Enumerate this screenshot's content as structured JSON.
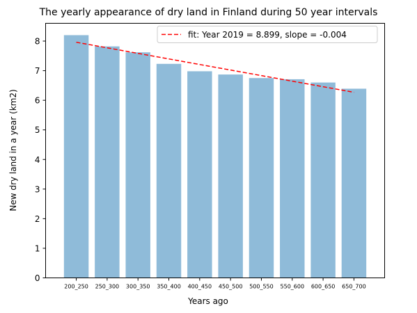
{
  "chart_data": {
    "type": "bar",
    "title": "The yearly appearance of dry land in Finland during 50 year intervals",
    "xlabel": "Years ago",
    "ylabel": "New dry land in a year (km2)",
    "categories": [
      "200_250",
      "250_300",
      "300_350",
      "350_400",
      "400_450",
      "450_500",
      "500_550",
      "550_600",
      "600_650",
      "650_700"
    ],
    "values": [
      8.2,
      7.82,
      7.62,
      7.23,
      6.98,
      6.87,
      6.75,
      6.71,
      6.6,
      6.39
    ],
    "ylim": [
      0,
      8.6
    ],
    "yticks": [
      0,
      1,
      2,
      3,
      4,
      5,
      6,
      7,
      8
    ],
    "bar_color": "#8fbbd9",
    "fit": {
      "label": "fit: Year 2019 = 8.899, slope = -0.004",
      "start": 7.96,
      "end": 6.27,
      "color": "#ff0000",
      "style": "dashed"
    },
    "legend_position": "top-right",
    "grid": false
  }
}
